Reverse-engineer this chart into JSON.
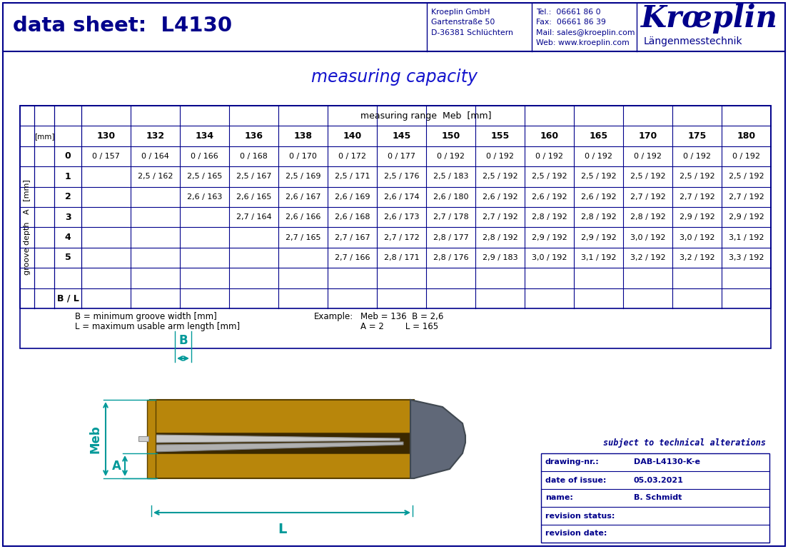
{
  "title_left": "data sheet:  L4130",
  "header_company": "Kroeplin GmbH\nGartenstraße 50\nD-36381 Schlüchtern",
  "header_contact": "Tel.:  06661 86 0\nFax:  06661 86 39\nMail: sales@kroeplin.com\nWeb: www.kroeplin.com",
  "header_brand": "Krœplin",
  "header_brand2": "Längenmesstechnik",
  "section_title": "measuring capacity",
  "table_header_label": "measuring range  Meb  [mm]",
  "col_headers": [
    "130",
    "132",
    "134",
    "136",
    "138",
    "140",
    "145",
    "150",
    "155",
    "160",
    "165",
    "170",
    "175",
    "180"
  ],
  "row_labels": [
    "0",
    "1",
    "2",
    "3",
    "4",
    "5",
    "",
    "B / L"
  ],
  "row_axis_label": "groove depth   A   [mm]",
  "table_data": [
    [
      "0 / 157",
      "0 / 164",
      "0 / 166",
      "0 / 168",
      "0 / 170",
      "0 / 172",
      "0 / 177",
      "0 / 192",
      "0 / 192",
      "0 / 192",
      "0 / 192",
      "0 / 192",
      "0 / 192",
      "0 / 192"
    ],
    [
      "",
      "2,5 / 162",
      "2,5 / 165",
      "2,5 / 167",
      "2,5 / 169",
      "2,5 / 171",
      "2,5 / 176",
      "2,5 / 183",
      "2,5 / 192",
      "2,5 / 192",
      "2,5 / 192",
      "2,5 / 192",
      "2,5 / 192",
      "2,5 / 192"
    ],
    [
      "",
      "",
      "2,6 / 163",
      "2,6 / 165",
      "2,6 / 167",
      "2,6 / 169",
      "2,6 / 174",
      "2,6 / 180",
      "2,6 / 192",
      "2,6 / 192",
      "2,6 / 192",
      "2,7 / 192",
      "2,7 / 192",
      "2,7 / 192"
    ],
    [
      "",
      "",
      "",
      "2,7 / 164",
      "2,6 / 166",
      "2,6 / 168",
      "2,6 / 173",
      "2,7 / 178",
      "2,7 / 192",
      "2,8 / 192",
      "2,8 / 192",
      "2,8 / 192",
      "2,9 / 192",
      "2,9 / 192"
    ],
    [
      "",
      "",
      "",
      "",
      "2,7 / 165",
      "2,7 / 167",
      "2,7 / 172",
      "2,8 / 177",
      "2,8 / 192",
      "2,9 / 192",
      "2,9 / 192",
      "3,0 / 192",
      "3,0 / 192",
      "3,1 / 192"
    ],
    [
      "",
      "",
      "",
      "",
      "",
      "2,7 / 166",
      "2,8 / 171",
      "2,8 / 176",
      "2,9 / 183",
      "3,0 / 192",
      "3,1 / 192",
      "3,2 / 192",
      "3,2 / 192",
      "3,3 / 192"
    ],
    [
      "",
      "",
      "",
      "",
      "",
      "",
      "",
      "",
      "",
      "",
      "",
      "",
      "",
      ""
    ],
    [
      "",
      "",
      "",
      "",
      "",
      "",
      "",
      "",
      "",
      "",
      "",
      "",
      "",
      ""
    ]
  ],
  "footnote_b": "B = minimum groove width [mm]",
  "footnote_l": "L = maximum usable arm length [mm]",
  "example_label": "Example:",
  "example_text1": "Meb = 136  B = 2,6",
  "example_text2": "A = 2        L = 165",
  "bottom_right_note": "subject to technical alterations",
  "drawing_nr_label": "drawing-nr.:",
  "drawing_nr_val": "DAB-L4130-K-e",
  "date_label": "date of issue:",
  "date_val": "05.03.2021",
  "name_label": "name:",
  "name_val": "B. Schmidt",
  "rev_status_label": "revision status:",
  "rev_date_label": "revision date:",
  "dark_blue": "#00008B",
  "blue_text": "#1414CD",
  "bg_color": "#FFFFFF",
  "gold_color": "#B8860B",
  "gray_color": "#808080",
  "cyan_color": "#009999"
}
